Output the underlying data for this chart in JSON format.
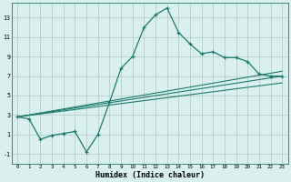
{
  "xlabel": "Humidex (Indice chaleur)",
  "bg_color": "#d9f0ef",
  "grid_color": "#b8d0cc",
  "line_color": "#1e7a6e",
  "xlim": [
    -0.5,
    23.5
  ],
  "ylim": [
    -2.0,
    14.5
  ],
  "xticks": [
    0,
    1,
    2,
    3,
    4,
    5,
    6,
    7,
    8,
    9,
    10,
    11,
    12,
    13,
    14,
    15,
    16,
    17,
    18,
    19,
    20,
    21,
    22,
    23
  ],
  "yticks": [
    -1,
    1,
    3,
    5,
    7,
    9,
    11,
    13
  ],
  "series1_x": [
    0,
    1,
    2,
    3,
    4,
    5,
    6,
    7,
    8,
    9,
    10,
    11,
    12,
    13,
    14,
    15,
    16,
    17,
    18,
    19,
    20,
    21,
    22,
    23
  ],
  "series1_y": [
    2.8,
    2.6,
    0.5,
    0.9,
    1.1,
    1.3,
    -0.8,
    1.0,
    4.3,
    7.8,
    9.0,
    12.0,
    13.3,
    14.0,
    11.5,
    10.3,
    9.3,
    9.5,
    8.9,
    8.9,
    8.5,
    7.2,
    7.0,
    7.0
  ],
  "line2_x": [
    0,
    23
  ],
  "line2_y": [
    2.8,
    7.0
  ],
  "line3_x": [
    0,
    23
  ],
  "line3_y": [
    2.8,
    6.3
  ],
  "line4_x": [
    0,
    23
  ],
  "line4_y": [
    2.8,
    7.5
  ]
}
